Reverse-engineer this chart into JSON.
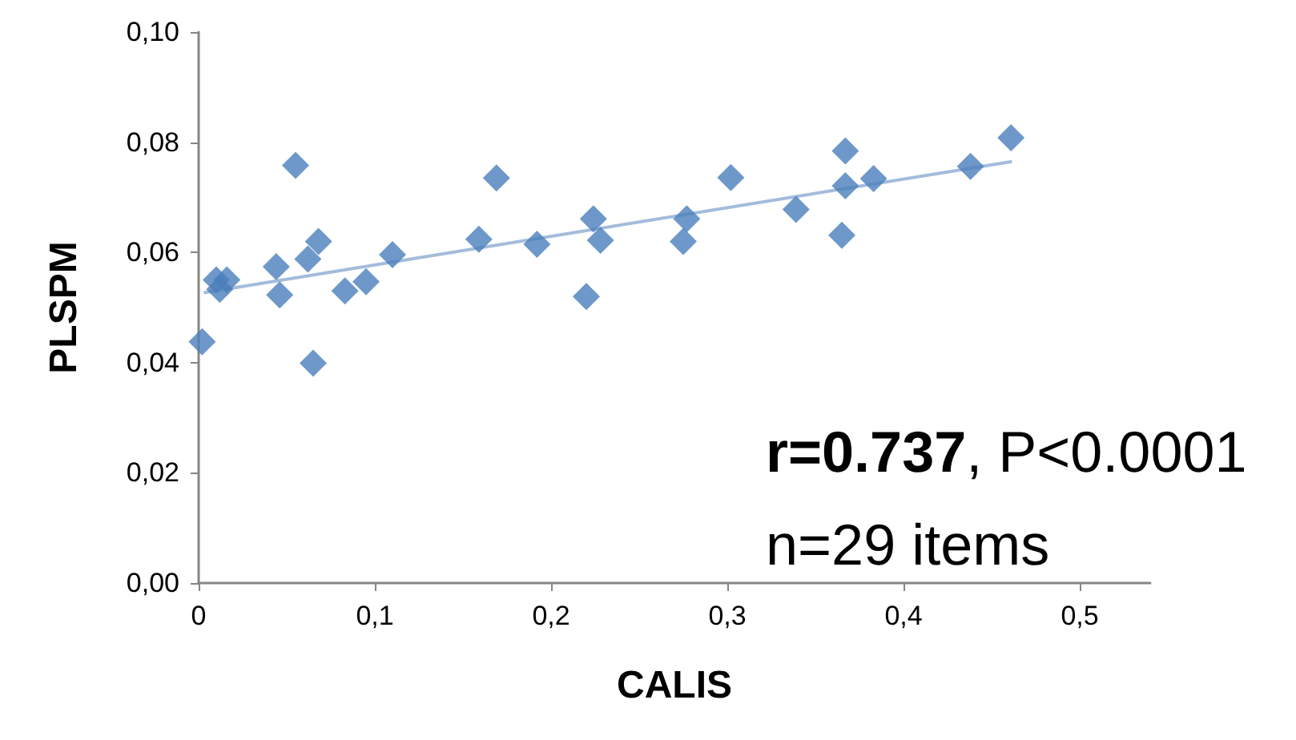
{
  "chart_data": {
    "type": "scatter",
    "xlabel": "CALIS",
    "ylabel": "PLSPM",
    "grid": false,
    "xlim": [
      0,
      0.54
    ],
    "xticks": [
      {
        "value": 0,
        "label": "0"
      },
      {
        "value": 0.1,
        "label": "0,1"
      },
      {
        "value": 0.2,
        "label": "0,2"
      },
      {
        "value": 0.3,
        "label": "0,3"
      },
      {
        "value": 0.4,
        "label": "0,4"
      },
      {
        "value": 0.5,
        "label": "0,5"
      }
    ],
    "ylim": [
      0,
      0.1
    ],
    "yticks": [
      {
        "value": 0,
        "label": "0,00"
      },
      {
        "value": 0.02,
        "label": "0,02"
      },
      {
        "value": 0.04,
        "label": "0,04"
      },
      {
        "value": 0.06,
        "label": "0,06"
      },
      {
        "value": 0.08,
        "label": "0,08"
      },
      {
        "value": 0.1,
        "label": "0,10"
      }
    ],
    "series": [
      {
        "marker": "diamond",
        "color": "#4a7ebb",
        "x": [
          0.002,
          0.01,
          0.012,
          0.016,
          0.044,
          0.046,
          0.055,
          0.062,
          0.068,
          0.065,
          0.083,
          0.095,
          0.11,
          0.159,
          0.169,
          0.192,
          0.224,
          0.228,
          0.22,
          0.277,
          0.275,
          0.302,
          0.339,
          0.367,
          0.367,
          0.365,
          0.383,
          0.438,
          0.461
        ],
        "values": [
          0.0438,
          0.055,
          0.0533,
          0.055,
          0.0574,
          0.0523,
          0.0758,
          0.0588,
          0.062,
          0.0399,
          0.053,
          0.0547,
          0.0596,
          0.0624,
          0.0735,
          0.0615,
          0.0661,
          0.0622,
          0.052,
          0.0661,
          0.062,
          0.0736,
          0.0678,
          0.0784,
          0.0721,
          0.0631,
          0.0734,
          0.0756,
          0.0808
        ]
      },
      {
        "type": "line",
        "marker": "none",
        "color": "#a3bcdc",
        "x": [
          0.003,
          0.4615
        ],
        "values": [
          0.0527,
          0.0765
        ]
      }
    ],
    "annotations": [
      "r=0.737, P<0.0001",
      "n=29 items"
    ]
  }
}
